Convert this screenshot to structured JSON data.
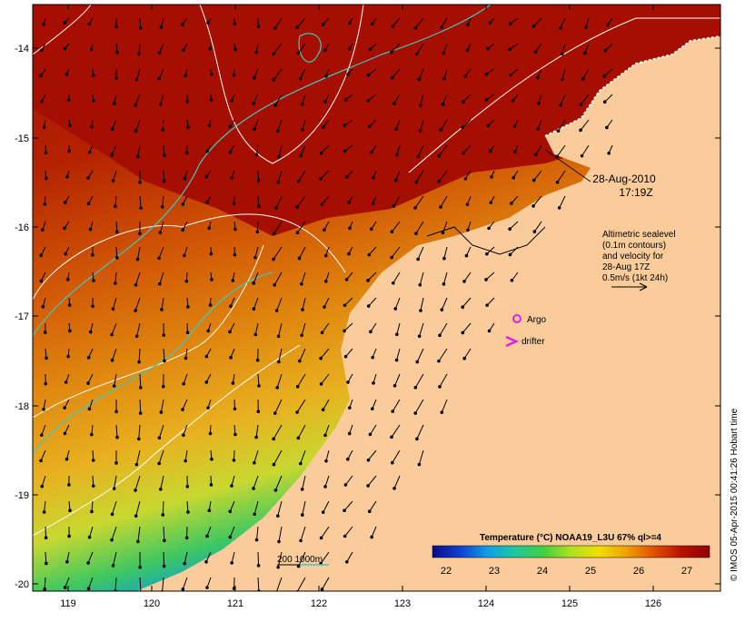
{
  "map": {
    "timestamp": {
      "date": "28-Aug-2010",
      "time": "17:19Z"
    },
    "altimetry_note": {
      "line1": "Altimetric sealevel",
      "line2": "(0.1m contours)",
      "line3": "and velocity for",
      "line4": "28-Aug 17Z",
      "scale_label": "0.5m/s (1kt 24h)"
    },
    "legend": {
      "argo": "Argo",
      "drifter": "drifter"
    },
    "depth_label": "200  1000m",
    "colorbar": {
      "title": "Temperature (°C) NOAA19_L3U 67% ql>=4",
      "ticks": [
        "22",
        "23",
        "24",
        "25",
        "26",
        "27"
      ],
      "colors": [
        "#0a0a8a",
        "#1040d0",
        "#10a0e8",
        "#20c8a0",
        "#40d040",
        "#b0e020",
        "#f0e000",
        "#f0a000",
        "#e05000",
        "#b81000",
        "#900000"
      ]
    },
    "credit": "© IMOS 05-Apr-2015 00:41:26 Hobart time",
    "y_ticks": [
      "-14",
      "-15",
      "-16",
      "-17",
      "-18",
      "-19",
      "-20"
    ],
    "x_ticks": [
      "119",
      "120",
      "121",
      "122",
      "123",
      "124",
      "125",
      "126"
    ],
    "colors": {
      "land": "#facb9b",
      "hot": "#a50e00",
      "warm": "#d95a06",
      "contour": "#ffffff",
      "isobath": "#40c8c0",
      "argo": "#e020e0"
    }
  }
}
